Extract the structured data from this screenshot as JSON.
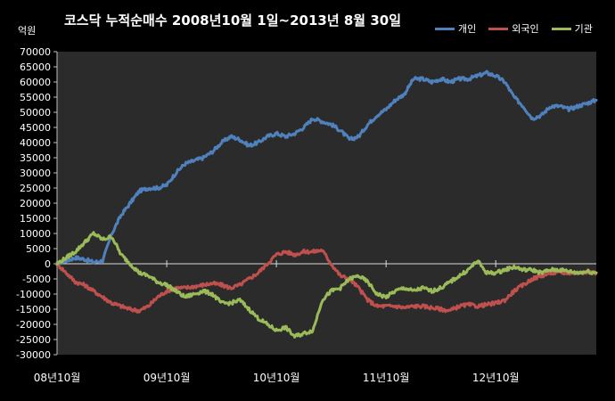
{
  "chart_data": {
    "type": "line",
    "title": "코스닥  누적순매수 2008년10월 1일~2013년 8월 30일",
    "ylabel": "억원",
    "xlabel": "",
    "ylim": [
      -30000,
      70000
    ],
    "y_ticks": [
      70000,
      65000,
      60000,
      55000,
      50000,
      45000,
      40000,
      35000,
      30000,
      25000,
      20000,
      15000,
      10000,
      5000,
      0,
      -5000,
      -10000,
      -15000,
      -20000,
      -25000,
      -30000
    ],
    "x_ticks": [
      {
        "label": "08년10월",
        "pos": 0
      },
      {
        "label": "09년10월",
        "pos": 12
      },
      {
        "label": "10년10월",
        "pos": 24
      },
      {
        "label": "11년10월",
        "pos": 36
      },
      {
        "label": "12년10월",
        "pos": 48
      }
    ],
    "xlim": [
      0,
      59
    ],
    "grid": false,
    "legend_position": "top-right",
    "series": [
      {
        "name": "개인",
        "color": "#4f81bd",
        "x": [
          0,
          1,
          2,
          3,
          4,
          5,
          6,
          7,
          8,
          9,
          10,
          11,
          12,
          13,
          14,
          15,
          16,
          17,
          18,
          19,
          20,
          21,
          22,
          23,
          24,
          25,
          26,
          27,
          28,
          29,
          30,
          31,
          32,
          33,
          34,
          35,
          36,
          37,
          38,
          39,
          40,
          41,
          42,
          43,
          44,
          45,
          46,
          47,
          48,
          49,
          50,
          51,
          52,
          53,
          54,
          55,
          56,
          57,
          58,
          59
        ],
        "values": [
          0,
          1000,
          2000,
          1500,
          500,
          1000,
          10000,
          16000,
          20000,
          24000,
          25000,
          25000,
          26000,
          30000,
          33000,
          34000,
          35000,
          37000,
          40000,
          42000,
          41000,
          39000,
          40000,
          42000,
          43000,
          42000,
          43000,
          45000,
          48000,
          47000,
          46000,
          44000,
          41000,
          42000,
          46000,
          49000,
          51000,
          54000,
          56000,
          61000,
          61000,
          60000,
          61000,
          60000,
          61000,
          61000,
          62000,
          63000,
          62000,
          60000,
          55000,
          52000,
          48000,
          49000,
          52000,
          52000,
          51000,
          52000,
          53000,
          54000
        ]
      },
      {
        "name": "외국인",
        "color": "#c0504d",
        "x": [
          0,
          1,
          2,
          3,
          4,
          5,
          6,
          7,
          8,
          9,
          10,
          11,
          12,
          13,
          14,
          15,
          16,
          17,
          18,
          19,
          20,
          21,
          22,
          23,
          24,
          25,
          26,
          27,
          28,
          29,
          30,
          31,
          32,
          33,
          34,
          35,
          36,
          37,
          38,
          39,
          40,
          41,
          42,
          43,
          44,
          45,
          46,
          47,
          48,
          49,
          50,
          51,
          52,
          53,
          54,
          55,
          56,
          57,
          58,
          59
        ],
        "values": [
          0,
          -3000,
          -6000,
          -7000,
          -9000,
          -11000,
          -13000,
          -14000,
          -15000,
          -15500,
          -14000,
          -11000,
          -9000,
          -8000,
          -8000,
          -7500,
          -7000,
          -6500,
          -7000,
          -8000,
          -7000,
          -5000,
          -3000,
          0,
          3000,
          4000,
          3000,
          4000,
          4000,
          4500,
          0,
          -4000,
          -5000,
          -8000,
          -12000,
          -14000,
          -14000,
          -14000,
          -14500,
          -14000,
          -14000,
          -14500,
          -15000,
          -15500,
          -14000,
          -13500,
          -14000,
          -13500,
          -13000,
          -12000,
          -9000,
          -7000,
          -5000,
          -4000,
          -3000,
          -3000,
          -3000,
          -3000,
          -2500,
          -3000
        ]
      },
      {
        "name": "기관",
        "color": "#9bbb59",
        "x": [
          0,
          1,
          2,
          3,
          4,
          5,
          6,
          7,
          8,
          9,
          10,
          11,
          12,
          13,
          14,
          15,
          16,
          17,
          18,
          19,
          20,
          21,
          22,
          23,
          24,
          25,
          26,
          27,
          28,
          29,
          30,
          31,
          32,
          33,
          34,
          35,
          36,
          37,
          38,
          39,
          40,
          41,
          42,
          43,
          44,
          45,
          46,
          47,
          48,
          49,
          50,
          51,
          52,
          53,
          54,
          55,
          56,
          57,
          58,
          59
        ],
        "values": [
          0,
          2000,
          4000,
          7000,
          10000,
          8000,
          9000,
          3000,
          0,
          -3000,
          -4000,
          -6000,
          -7000,
          -9000,
          -11000,
          -10000,
          -9000,
          -10000,
          -13000,
          -13000,
          -12000,
          -15000,
          -18000,
          -20000,
          -22000,
          -21000,
          -24000,
          -23000,
          -22000,
          -12000,
          -9000,
          -8000,
          -5000,
          -4000,
          -6000,
          -10000,
          -11000,
          -9000,
          -8000,
          -9000,
          -8000,
          -9000,
          -8000,
          -6000,
          -4000,
          -2000,
          1000,
          -3000,
          -3000,
          -2000,
          -1000,
          -2000,
          -2000,
          -3000,
          -2000,
          -2000,
          -2500,
          -3000,
          -2500,
          -3000
        ]
      }
    ]
  }
}
